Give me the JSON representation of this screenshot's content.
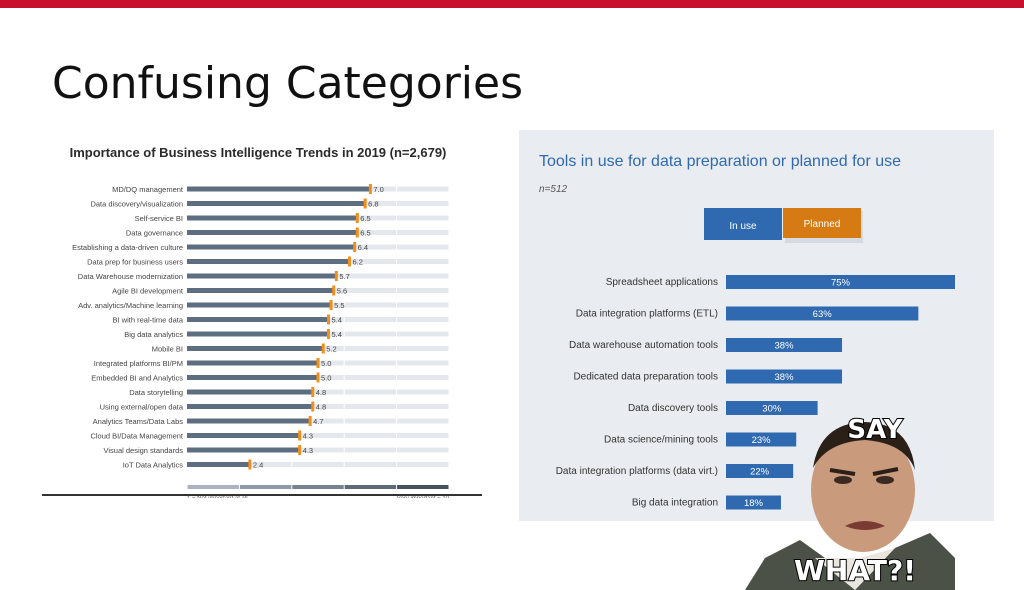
{
  "slide": {
    "title": "Confusing Categories"
  },
  "colors": {
    "accent_red": "#c8102e",
    "bar_gray": "#5d6e80",
    "marker_orange": "#f0901a",
    "blue": "#2f69b0",
    "orange": "#d67a14"
  },
  "chart_data": [
    {
      "type": "bar",
      "orientation": "horizontal",
      "title": "Importance of Business Intelligence Trends in 2019 (n=2,679)",
      "categories": [
        "MD/DQ management",
        "Data discovery/visualization",
        "Self-service BI",
        "Data governance",
        "Establishing a data-driven culture",
        "Data prep for business users",
        "Data Warehouse modernization",
        "Agile BI development",
        "Adv. analytics/Machine learning",
        "BI with real-time data",
        "Big data analytics",
        "Mobile BI",
        "Integrated platforms BI/PM",
        "Embedded BI and Analytics",
        "Data storytelling",
        "Using external/open data",
        "Analytics Teams/Data Labs",
        "Cloud BI/Data Management",
        "Visual design standards",
        "IoT Data Analytics"
      ],
      "values": [
        7.0,
        6.8,
        6.5,
        6.5,
        6.4,
        6.2,
        5.7,
        5.6,
        5.5,
        5.4,
        5.4,
        5.2,
        5.0,
        5.0,
        4.8,
        4.8,
        4.7,
        4.3,
        4.3,
        2.4
      ],
      "value_labels": [
        "7.0",
        "6.8",
        "6.5",
        "6.5",
        "6.4",
        "6.2",
        "5.7",
        "5.6",
        "5.5",
        "5.4",
        "5.4",
        "5.2",
        "5.0",
        "5.0",
        "4.8",
        "4.8",
        "4.7",
        "4.3",
        "4.3",
        "2.4"
      ],
      "xlim": [
        0,
        10
      ],
      "scale_min_label": "1 = Not important at all",
      "scale_max_label": "Very important = 10"
    },
    {
      "type": "bar",
      "orientation": "horizontal",
      "title": "Tools in use for data preparation or planned for use",
      "subtitle": "n=512",
      "legend": [
        "In use",
        "Planned"
      ],
      "categories": [
        "Spreadsheet applications",
        "Data integration platforms (ETL)",
        "Data warehouse automation tools",
        "Dedicated data preparation tools",
        "Data discovery tools",
        "Data science/mining tools",
        "Data integration platforms (data virt.)",
        "Big data integration"
      ],
      "values": [
        75,
        63,
        38,
        38,
        30,
        23,
        22,
        18
      ],
      "value_labels": [
        "75%",
        "63%",
        "38%",
        "38%",
        "30%",
        "23%",
        "22%",
        "18%"
      ],
      "xlim": [
        0,
        100
      ]
    }
  ],
  "meme": {
    "caption_top": "SAY",
    "caption_bottom": "WHAT?!"
  }
}
